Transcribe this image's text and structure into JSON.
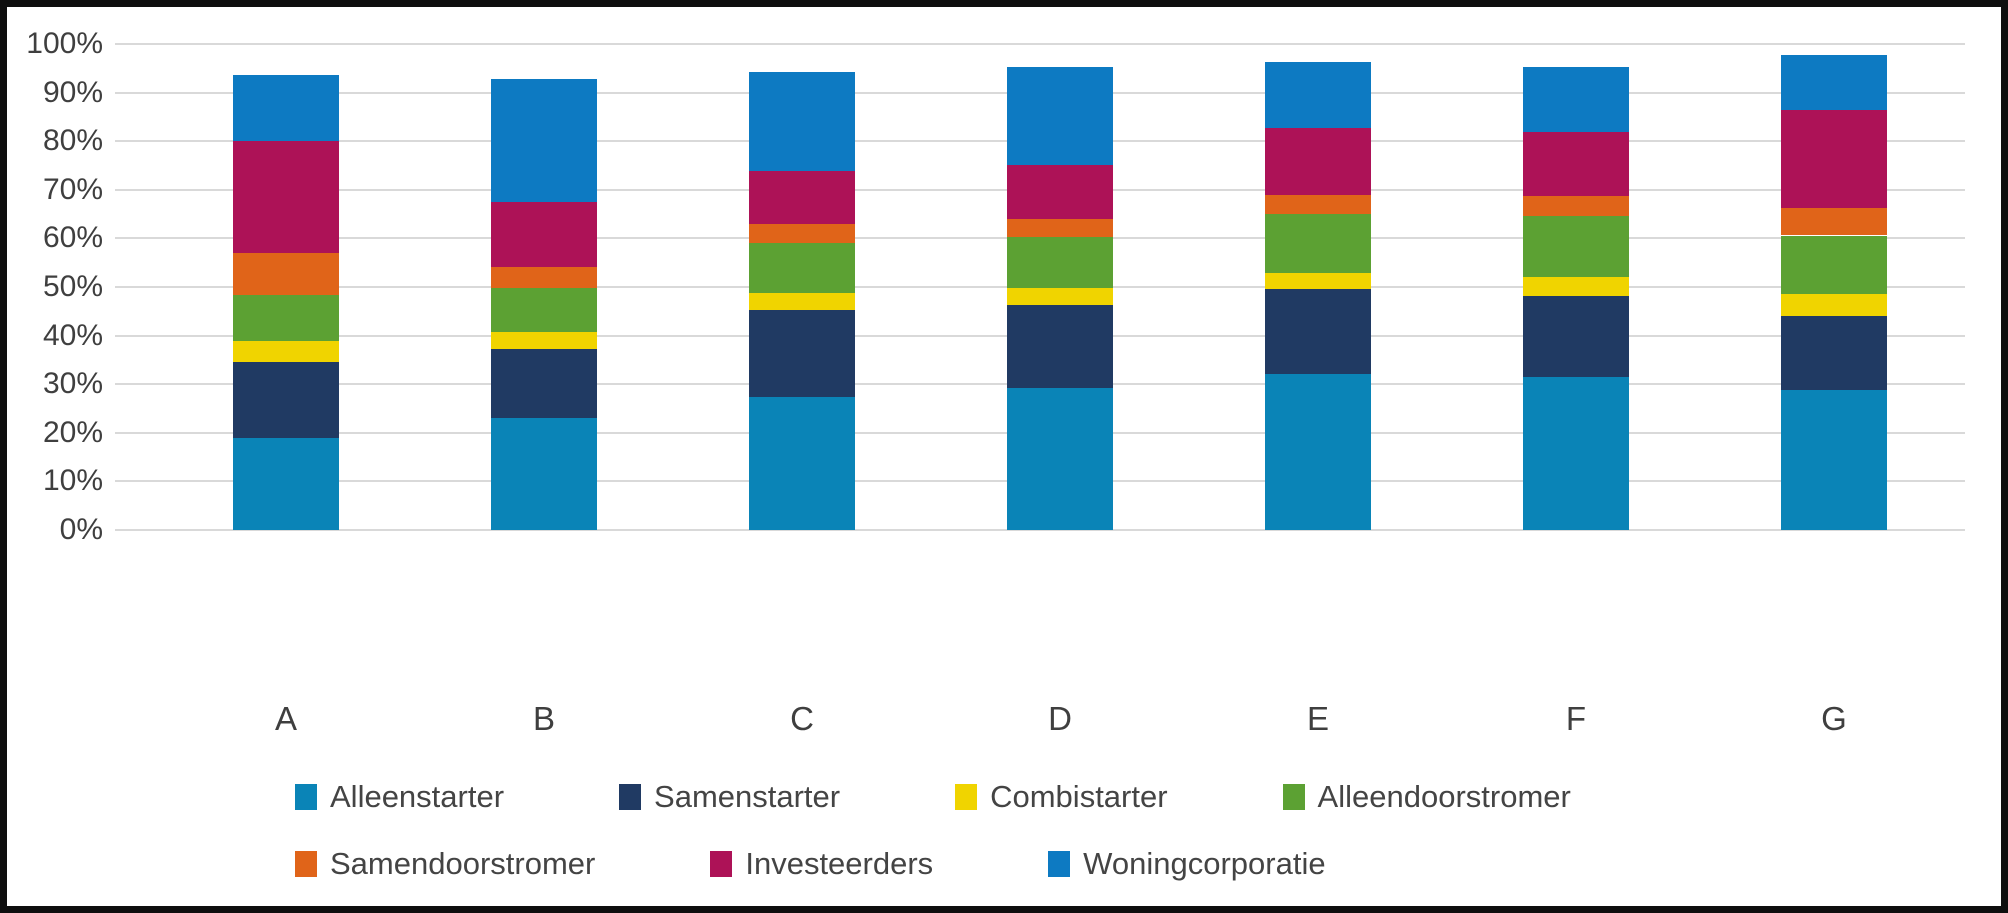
{
  "chart_data": {
    "type": "bar",
    "stacked": true,
    "title": "",
    "xlabel": "",
    "ylabel": "",
    "unit": "%",
    "ylim": [
      0,
      100
    ],
    "grid": true,
    "legend_position": "bottom",
    "categories": [
      "A",
      "B",
      "C",
      "D",
      "E",
      "F",
      "G"
    ],
    "y_ticks": [
      "0%",
      "10%",
      "20%",
      "30%",
      "40%",
      "50%",
      "60%",
      "70%",
      "80%",
      "90%",
      "100%"
    ],
    "series": [
      {
        "name": "Alleenstarter",
        "color": "#0a84b7",
        "values": [
          19.0,
          23.0,
          27.4,
          29.2,
          32.0,
          31.5,
          28.8
        ]
      },
      {
        "name": "Samenstarter",
        "color": "#203a63",
        "values": [
          15.5,
          14.3,
          17.8,
          17.2,
          17.5,
          16.7,
          15.3
        ]
      },
      {
        "name": "Combistarter",
        "color": "#f0d400",
        "values": [
          4.3,
          3.4,
          3.6,
          3.4,
          3.4,
          3.9,
          4.4
        ]
      },
      {
        "name": "Alleendoorstromer",
        "color": "#5ca133",
        "values": [
          9.6,
          9.2,
          10.2,
          10.4,
          12.1,
          12.6,
          12.1
        ]
      },
      {
        "name": "Samendoorstromer",
        "color": "#e06419",
        "values": [
          8.6,
          4.3,
          4.0,
          3.8,
          4.0,
          4.1,
          5.7
        ]
      },
      {
        "name": "Investeerders",
        "color": "#ad1257",
        "values": [
          23.0,
          13.2,
          10.9,
          11.2,
          13.8,
          13.1,
          20.2
        ]
      },
      {
        "name": "Woningcorporatie",
        "color": "#0d7ac2",
        "values": [
          13.7,
          25.5,
          20.4,
          20.0,
          13.5,
          13.3,
          11.2
        ]
      }
    ],
    "legend_rows": [
      [
        "Alleenstarter",
        "Samenstarter",
        "Combistarter",
        "Alleendoorstromer"
      ],
      [
        "Samendoorstromer",
        "Investeerders",
        "Woningcorporatie"
      ]
    ],
    "colors": {
      "gridline": "#d9d9d9",
      "tick_text": "#3f3f3f",
      "background": "#ffffff",
      "frame_border": "#0e0e0e"
    }
  }
}
